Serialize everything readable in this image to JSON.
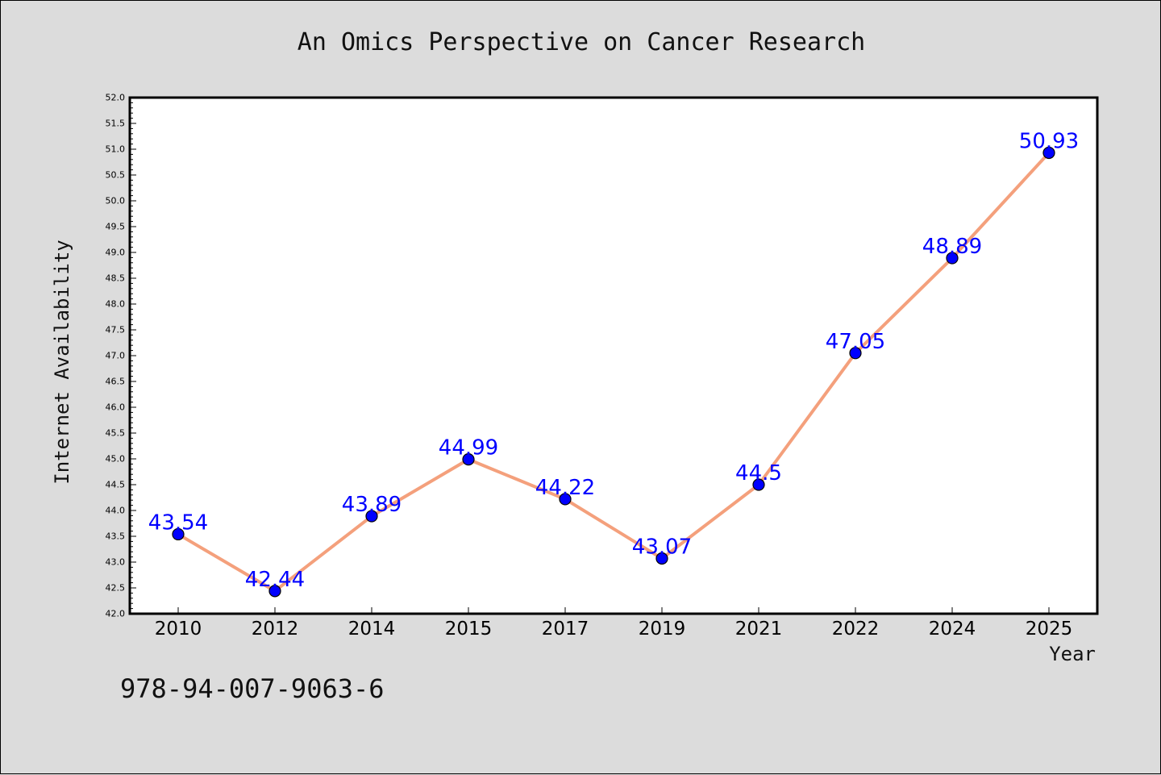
{
  "chart_data": {
    "type": "line",
    "title": "An Omics Perspective on Cancer Research",
    "xlabel": "Year",
    "ylabel": "Internet Availability",
    "categories": [
      "2010",
      "2012",
      "2014",
      "2015",
      "2017",
      "2019",
      "2021",
      "2022",
      "2024",
      "2025"
    ],
    "series": [
      {
        "values": [
          43.54,
          42.44,
          43.89,
          44.99,
          44.22,
          43.07,
          44.5,
          47.05,
          48.89,
          50.93
        ],
        "data_labels": [
          "43.54",
          "42.44",
          "43.89",
          "44.99",
          "44.22",
          "43.07",
          "44.5",
          "47.05",
          "48.89",
          "50.93"
        ],
        "line_color": "#f4a07c",
        "marker_color": "#0000ff",
        "label_color": "#0000ff"
      }
    ],
    "ylim": [
      42.0,
      52.0
    ],
    "yticks": [
      "42.0",
      "42.5",
      "43.0",
      "43.5",
      "44.0",
      "44.5",
      "45.0",
      "45.5",
      "46.0",
      "46.5",
      "47.0",
      "47.5",
      "48.0",
      "48.5",
      "49.0",
      "49.5",
      "50.0",
      "50.5",
      "51.0",
      "51.5",
      "52.0"
    ],
    "grid": false,
    "legend": "none",
    "background_color": "#dcdcdc",
    "plot_background_color": "#ffffff"
  },
  "footer_text": "978-94-007-9063-6"
}
